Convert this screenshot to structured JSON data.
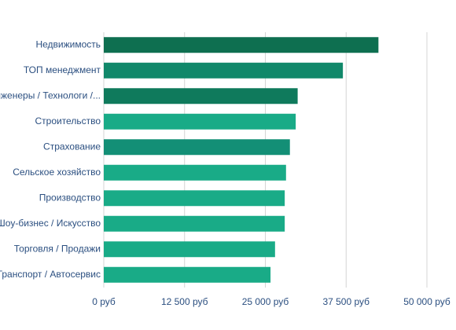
{
  "chart_data": {
    "type": "hbar",
    "categories": [
      "Недвижимость",
      "ТОП менеджмент",
      "Инженеры / Технологи /...",
      "Строительство",
      "Страхование",
      "Сельское хозяйство",
      "Производство",
      "Шоу-бизнес / Искусство",
      "Торговля / Продажи",
      "Транспорт / Автосервис"
    ],
    "values": [
      42500,
      37000,
      30000,
      29700,
      28800,
      28200,
      28000,
      28000,
      26500,
      25800
    ],
    "colors": [
      "#0e6f50",
      "#11886a",
      "#0f7a5c",
      "#19ab87",
      "#138f76",
      "#19ab87",
      "#19ab87",
      "#19ab87",
      "#19ab87",
      "#19ab87"
    ],
    "xlim": [
      0,
      50000
    ],
    "xticks": [
      {
        "value": 0,
        "label": "0 руб"
      },
      {
        "value": 12500,
        "label": "12 500 руб"
      },
      {
        "value": 25000,
        "label": "25 000 руб"
      },
      {
        "value": 37500,
        "label": "37 500 руб"
      },
      {
        "value": 50000,
        "label": "50 000 руб"
      }
    ],
    "grid": true
  }
}
